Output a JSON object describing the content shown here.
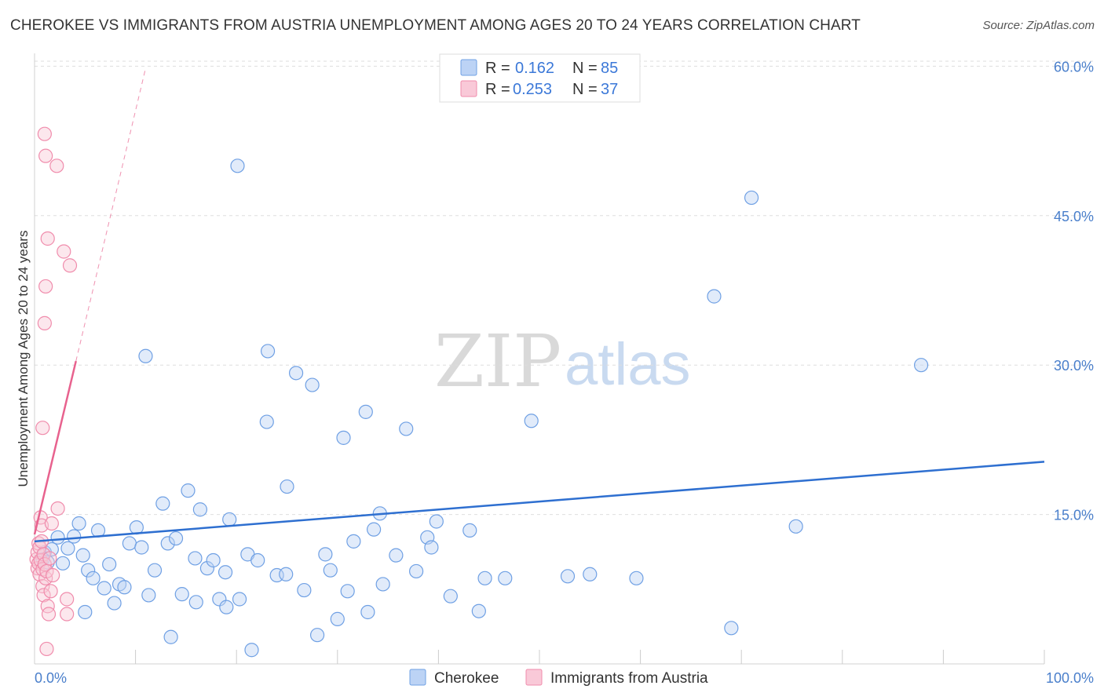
{
  "title": "CHEROKEE VS IMMIGRANTS FROM AUSTRIA UNEMPLOYMENT AMONG AGES 20 TO 24 YEARS CORRELATION CHART",
  "source": "Source: ZipAtlas.com",
  "watermark": {
    "zip": "ZIP",
    "atlas": "atlas"
  },
  "legend": {
    "r_label": "R =",
    "n_label": "N =",
    "rows": [
      {
        "r": "0.162",
        "n": "85"
      },
      {
        "r": "0.253",
        "n": "37"
      }
    ]
  },
  "chart_data": {
    "type": "scatter",
    "title": "CHEROKEE VS IMMIGRANTS FROM AUSTRIA UNEMPLOYMENT AMONG AGES 20 TO 24 YEARS CORRELATION CHART",
    "xlabel": "",
    "ylabel": "Unemployment Among Ages 20 to 24 years",
    "xlim": [
      0,
      100
    ],
    "ylim": [
      0,
      62
    ],
    "x_tick_labels": [
      "0.0%",
      "100.0%"
    ],
    "y_ticks": [
      15,
      30,
      45,
      60
    ],
    "y_tick_labels": [
      "15.0%",
      "30.0%",
      "45.0%",
      "60.0%"
    ],
    "grid": true,
    "colors": {
      "cherokee": "#6fa0e4",
      "austria": "#f08cac",
      "cherokee_line": "#2e6fd0",
      "austria_line": "#e8628e"
    },
    "series": [
      {
        "name": "Cherokee",
        "r": 0.162,
        "n": 85,
        "trend": {
          "x": [
            0,
            100
          ],
          "y": [
            12.3,
            20.3
          ]
        },
        "points": [
          [
            0.8,
            10.5
          ],
          [
            1.0,
            11.2
          ],
          [
            1.3,
            10.2
          ],
          [
            1.7,
            11.5
          ],
          [
            2.3,
            12.7
          ],
          [
            2.8,
            10.1
          ],
          [
            3.3,
            11.6
          ],
          [
            3.9,
            12.8
          ],
          [
            4.4,
            14.1
          ],
          [
            4.8,
            10.9
          ],
          [
            5.3,
            9.4
          ],
          [
            5.8,
            8.6
          ],
          [
            6.3,
            13.4
          ],
          [
            6.9,
            7.6
          ],
          [
            7.4,
            10.0
          ],
          [
            7.9,
            6.1
          ],
          [
            8.4,
            8.0
          ],
          [
            8.9,
            7.7
          ],
          [
            9.4,
            12.1
          ],
          [
            10.1,
            13.7
          ],
          [
            10.6,
            11.7
          ],
          [
            11.3,
            6.9
          ],
          [
            11.9,
            9.4
          ],
          [
            12.7,
            16.1
          ],
          [
            13.2,
            12.1
          ],
          [
            14.0,
            12.6
          ],
          [
            14.6,
            7.0
          ],
          [
            15.2,
            17.4
          ],
          [
            15.9,
            10.6
          ],
          [
            16.4,
            15.5
          ],
          [
            17.1,
            9.6
          ],
          [
            17.7,
            10.4
          ],
          [
            18.3,
            6.5
          ],
          [
            18.9,
            9.2
          ],
          [
            19.3,
            14.5
          ],
          [
            20.3,
            6.5
          ],
          [
            21.1,
            11.0
          ],
          [
            22.1,
            10.4
          ],
          [
            23.1,
            31.4
          ],
          [
            24.0,
            8.9
          ],
          [
            24.9,
            9.0
          ],
          [
            25.9,
            29.2
          ],
          [
            26.7,
            7.4
          ],
          [
            27.5,
            28.0
          ],
          [
            28.8,
            11.0
          ],
          [
            29.3,
            9.4
          ],
          [
            30.6,
            22.7
          ],
          [
            31.6,
            12.3
          ],
          [
            32.8,
            25.3
          ],
          [
            33.6,
            13.5
          ],
          [
            34.2,
            15.1
          ],
          [
            35.8,
            10.9
          ],
          [
            36.8,
            23.6
          ],
          [
            37.8,
            9.3
          ],
          [
            38.9,
            12.7
          ],
          [
            39.3,
            11.7
          ],
          [
            39.8,
            14.3
          ],
          [
            41.2,
            6.8
          ],
          [
            43.1,
            13.4
          ],
          [
            44.6,
            8.6
          ],
          [
            46.6,
            8.6
          ],
          [
            49.2,
            24.4
          ],
          [
            52.8,
            8.8
          ],
          [
            59.6,
            8.6
          ],
          [
            67.3,
            36.9
          ],
          [
            71.0,
            46.8
          ],
          [
            75.4,
            13.8
          ],
          [
            69.0,
            3.6
          ],
          [
            87.8,
            30.0
          ],
          [
            20.1,
            50.0
          ],
          [
            5.0,
            5.2
          ],
          [
            16.0,
            6.2
          ],
          [
            19.0,
            5.7
          ],
          [
            31.0,
            7.3
          ],
          [
            11.0,
            30.9
          ],
          [
            23.0,
            24.3
          ],
          [
            28.0,
            2.9
          ],
          [
            13.5,
            2.7
          ],
          [
            21.5,
            1.4
          ],
          [
            34.5,
            8.0
          ],
          [
            44.0,
            5.3
          ],
          [
            30.0,
            4.5
          ],
          [
            33.0,
            5.2
          ],
          [
            25.0,
            17.8
          ],
          [
            55.0,
            9.0
          ]
        ]
      },
      {
        "name": "Immigrants from Austria",
        "r": 0.253,
        "n": 37,
        "trend": {
          "x": [
            0,
            4.1
          ],
          "y": [
            13.0,
            30.4
          ]
        },
        "trend_extended": {
          "x": [
            4.1,
            11.0
          ],
          "y": [
            30.4,
            59.8
          ]
        },
        "points": [
          [
            0.2,
            10.5
          ],
          [
            0.3,
            11.2
          ],
          [
            0.3,
            9.6
          ],
          [
            0.4,
            12.1
          ],
          [
            0.4,
            10.1
          ],
          [
            0.5,
            9.0
          ],
          [
            0.5,
            11.7
          ],
          [
            0.6,
            14.7
          ],
          [
            0.6,
            10.4
          ],
          [
            0.7,
            13.9
          ],
          [
            0.7,
            12.3
          ],
          [
            0.8,
            9.5
          ],
          [
            0.8,
            7.8
          ],
          [
            0.9,
            11.0
          ],
          [
            0.9,
            6.9
          ],
          [
            1.0,
            10.0
          ],
          [
            1.1,
            8.6
          ],
          [
            1.2,
            9.3
          ],
          [
            1.3,
            5.8
          ],
          [
            1.4,
            5.0
          ],
          [
            1.5,
            10.6
          ],
          [
            1.6,
            7.3
          ],
          [
            1.7,
            14.1
          ],
          [
            1.8,
            8.9
          ],
          [
            2.3,
            15.6
          ],
          [
            3.2,
            6.5
          ],
          [
            3.2,
            5.0
          ],
          [
            3.5,
            40.0
          ],
          [
            2.9,
            41.4
          ],
          [
            1.3,
            42.7
          ],
          [
            1.1,
            37.9
          ],
          [
            1.0,
            34.2
          ],
          [
            0.8,
            23.7
          ],
          [
            1.0,
            53.2
          ],
          [
            1.1,
            51.0
          ],
          [
            2.2,
            50.0
          ],
          [
            1.2,
            1.5
          ]
        ]
      }
    ]
  },
  "bottom_legend": [
    {
      "label": "Cherokee"
    },
    {
      "label": "Immigrants from Austria"
    }
  ]
}
